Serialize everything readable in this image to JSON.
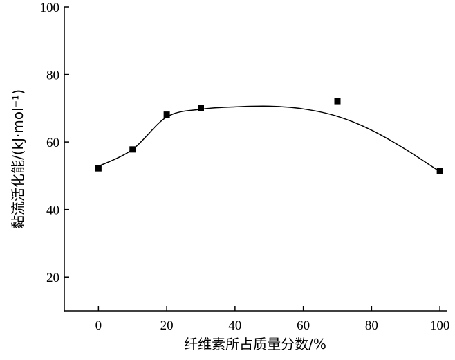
{
  "chart_data": {
    "type": "scatter",
    "title": "",
    "xlabel": "纤维素所占质量分数/%",
    "ylabel": "黏流活化能/(kJ·mol⁻¹)",
    "xlim": [
      -10,
      102
    ],
    "ylim": [
      10,
      100
    ],
    "xticks": [
      0,
      20,
      40,
      60,
      80,
      100
    ],
    "yticks": [
      20,
      40,
      60,
      80,
      100
    ],
    "xtick_labels": [
      "0",
      "20",
      "40",
      "60",
      "80",
      "100"
    ],
    "ytick_labels": [
      "20",
      "40",
      "60",
      "80",
      "100"
    ],
    "grid": false,
    "legend": "none",
    "series": [
      {
        "marker": "square",
        "color": "#000000",
        "x": [
          0,
          10,
          20,
          30,
          70,
          100
        ],
        "y": [
          52.2,
          57.8,
          68.1,
          70.0,
          72.1,
          51.4
        ]
      }
    ],
    "fit_curve": {
      "color": "#000000",
      "x": [
        0,
        10,
        20,
        30,
        40,
        50,
        60,
        70,
        80,
        90,
        100
      ],
      "y": [
        52.8,
        57.8,
        67.4,
        69.7,
        70.4,
        70.6,
        69.8,
        67.6,
        63.5,
        57.8,
        51.2
      ]
    }
  }
}
